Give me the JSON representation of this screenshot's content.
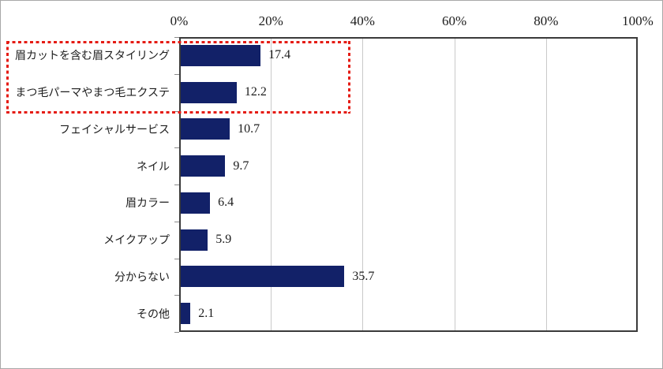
{
  "chart_data": {
    "type": "bar",
    "orientation": "horizontal",
    "title": "",
    "categories": [
      "眉カットを含む眉スタイリング",
      "まつ毛パーマやまつ毛エクステ",
      "フェイシャルサービス",
      "ネイル",
      "眉カラー",
      "メイクアップ",
      "分からない",
      "その他"
    ],
    "values": [
      17.4,
      12.2,
      10.7,
      9.7,
      6.4,
      5.9,
      35.7,
      2.1
    ],
    "value_labels": [
      "17.4",
      "12.2",
      "10.7",
      "9.7",
      "6.4",
      "5.9",
      "35.7",
      "2.1"
    ],
    "x_ticks": [
      "0%",
      "20%",
      "40%",
      "60%",
      "80%",
      "100%"
    ],
    "xlim": [
      0,
      100
    ],
    "grid": true,
    "legend": false,
    "bar_color": "#122168",
    "grid_color": "#c9c9c9",
    "axis_border_color": "#3b3b3b",
    "annotation": {
      "type": "highlight-box",
      "style": "dashed",
      "color": "#e51c14",
      "highlighted_categories": [
        "眉カットを含む眉スタイリング",
        "まつ毛パーマやまつ毛エクステ"
      ]
    }
  }
}
